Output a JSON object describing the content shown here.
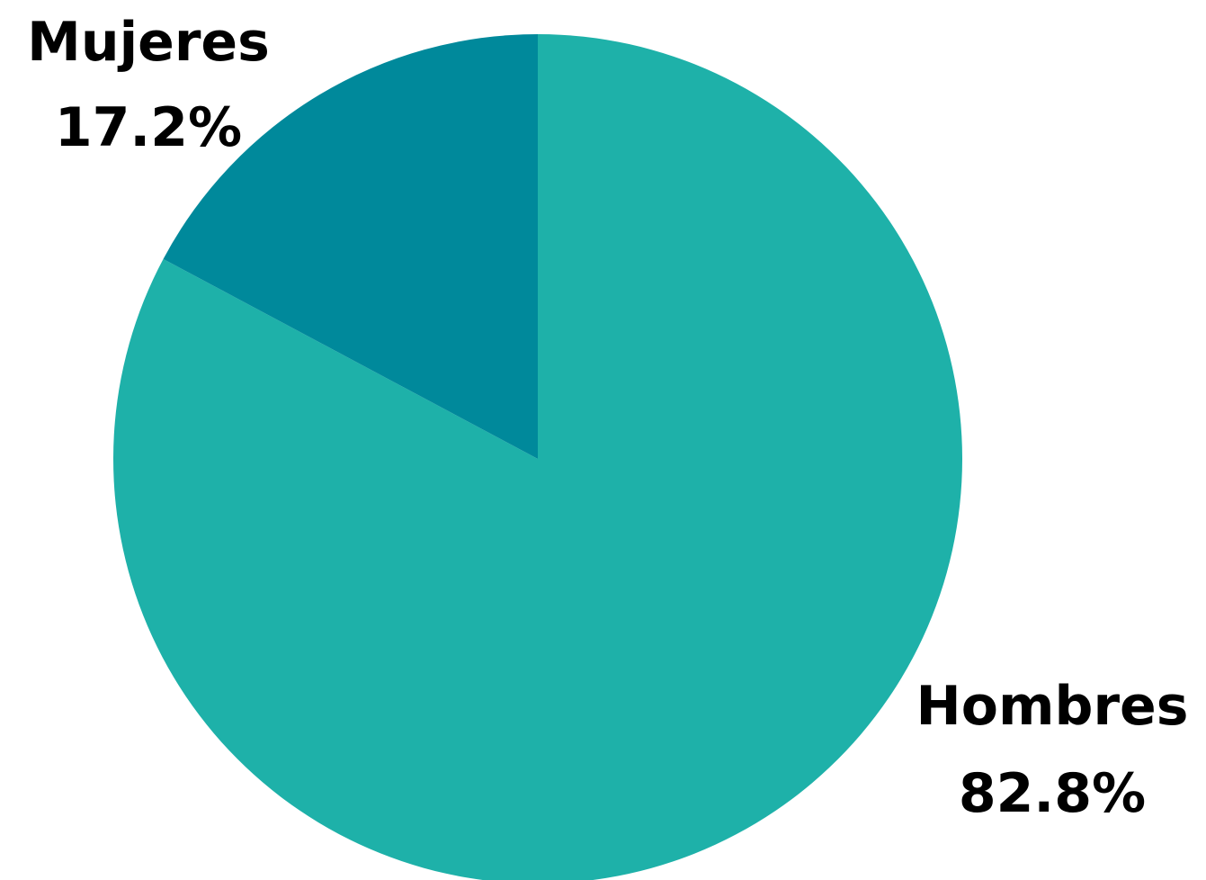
{
  "chart_data": {
    "type": "pie",
    "title": "",
    "slices": [
      {
        "name": "Hombres",
        "value": 82.8,
        "value_label": "82.8%",
        "color": "#1eb1a9"
      },
      {
        "name": "Mujeres",
        "value": 17.2,
        "value_label": "17.2%",
        "color": "#00899b"
      }
    ],
    "start_angle": "12 o'clock",
    "direction": "clockwise",
    "legend": "none"
  }
}
